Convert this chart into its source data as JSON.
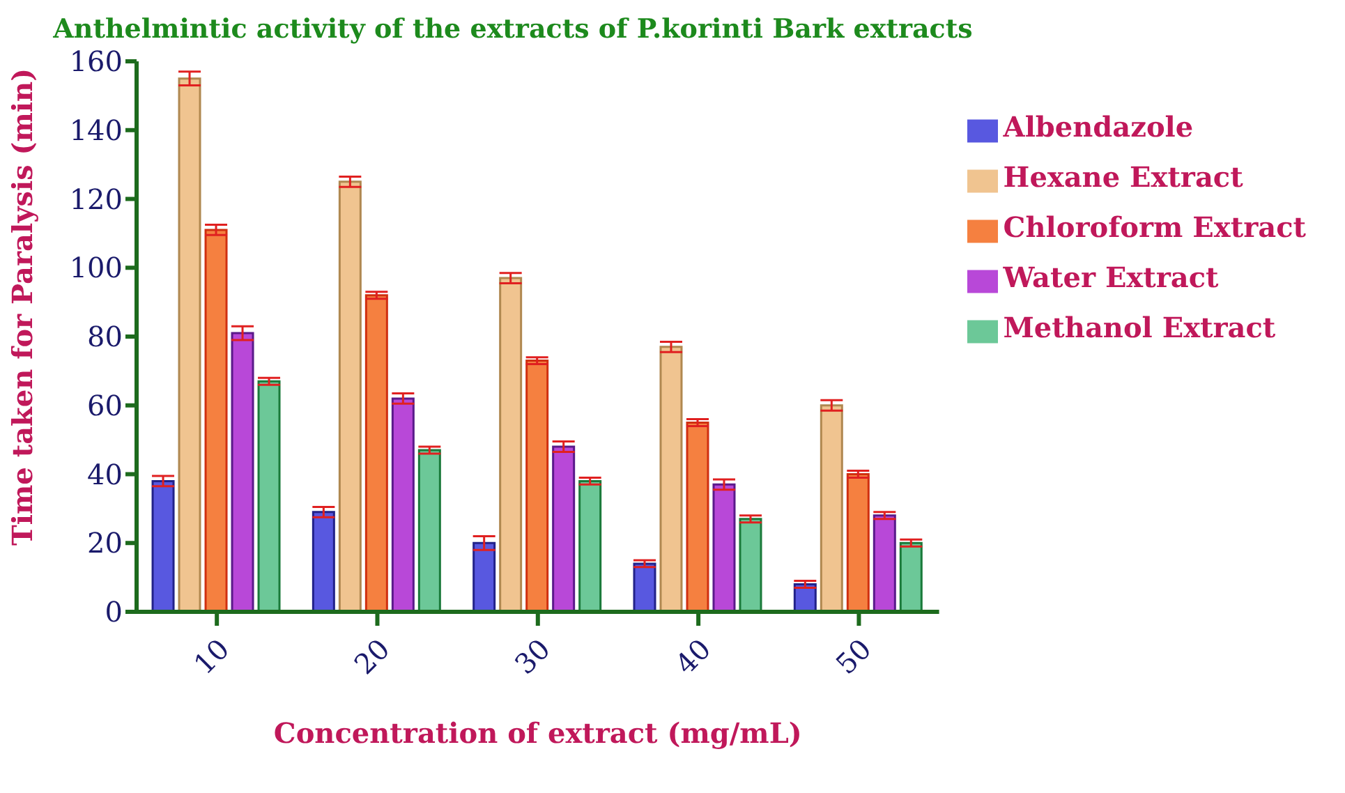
{
  "chart_data": {
    "type": "bar",
    "title": "Anthelmintic activity of the extracts of P.korinti Bark extracts",
    "xlabel": "Concentration of extract (mg/mL)",
    "ylabel": "Time taken for  Paralysis (min)",
    "categories": [
      "10",
      "20",
      "30",
      "40",
      "50"
    ],
    "series": [
      {
        "name": "Albendazole",
        "color": "#5858e0",
        "values": [
          38,
          29,
          20,
          14,
          8
        ],
        "errors": [
          1.5,
          1.5,
          2,
          1,
          1
        ]
      },
      {
        "name": "Hexane Extract",
        "color": "#f0c490",
        "values": [
          155,
          125,
          97,
          77,
          60
        ],
        "errors": [
          2,
          1.5,
          1.5,
          1.5,
          1.5
        ]
      },
      {
        "name": "Chloroform Extract",
        "color": "#f58040",
        "values": [
          111,
          92,
          73,
          55,
          40
        ],
        "errors": [
          1.5,
          1,
          1,
          1,
          1
        ]
      },
      {
        "name": "Water Extract",
        "color": "#b848d8",
        "values": [
          81,
          62,
          48,
          37,
          28
        ],
        "errors": [
          2,
          1.5,
          1.5,
          1.5,
          1
        ]
      },
      {
        "name": "Methanol Extract",
        "color": "#6cc898",
        "values": [
          67,
          47,
          38,
          27,
          20
        ],
        "errors": [
          1,
          1,
          1,
          1,
          1
        ]
      }
    ],
    "ylim": [
      0,
      160
    ],
    "yticks": [
      0,
      20,
      40,
      60,
      80,
      100,
      120,
      140,
      160
    ],
    "grid": false,
    "legend": "right"
  }
}
